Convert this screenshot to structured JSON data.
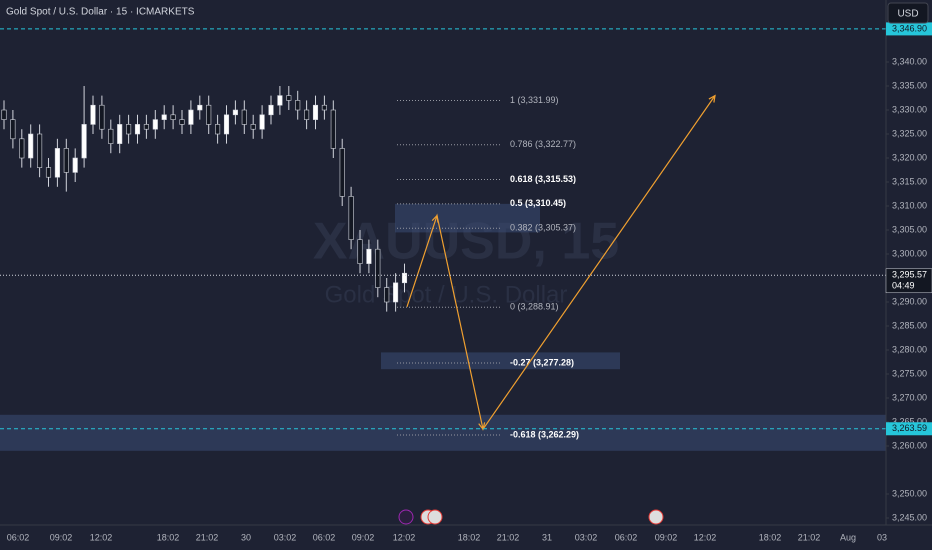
{
  "chart_data": {
    "type": "candlestick",
    "title": "Gold Spot / U.S. Dollar · 15 · ICMARKETS",
    "watermark": "XAUUSD, 15",
    "watermark_subtitle": "Gold Spot / U.S. Dollar",
    "currency_button": "USD",
    "ylim": [
      3243.54,
      3352.92
    ],
    "yticks": [
      {
        "value": 3245,
        "label": "3,245.00"
      },
      {
        "value": 3250,
        "label": "3,250.00"
      },
      {
        "value": 3260,
        "label": "3,260.00"
      },
      {
        "value": 3265,
        "label": "3,265.00"
      },
      {
        "value": 3270,
        "label": "3,270.00"
      },
      {
        "value": 3275,
        "label": "3,275.00"
      },
      {
        "value": 3280,
        "label": "3,280.00"
      },
      {
        "value": 3285,
        "label": "3,285.00"
      },
      {
        "value": 3290,
        "label": "3,290.00"
      },
      {
        "value": 3300,
        "label": "3,300.00"
      },
      {
        "value": 3305,
        "label": "3,305.00"
      },
      {
        "value": 3310,
        "label": "3,310.00"
      },
      {
        "value": 3315,
        "label": "3,315.00"
      },
      {
        "value": 3320,
        "label": "3,320.00"
      },
      {
        "value": 3325,
        "label": "3,325.00"
      },
      {
        "value": 3330,
        "label": "3,330.00"
      },
      {
        "value": 3335,
        "label": "3,335.00"
      },
      {
        "value": 3340,
        "label": "3,340.00"
      }
    ],
    "x_labels": [
      "06:02",
      "09:02",
      "12:02",
      "18:02",
      "21:02",
      "30",
      "03:02",
      "06:02",
      "09:02",
      "12:02",
      "18:02",
      "21:02",
      "31",
      "03:02",
      "06:02",
      "09:02",
      "12:02",
      "18:02",
      "21:02",
      "Aug",
      "03"
    ],
    "candles": {
      "up_color": "#ffffff",
      "down_color": "#131722",
      "open": [
        3330,
        3328,
        3324,
        3320,
        3325,
        3318,
        3316,
        3322,
        3317,
        3320,
        3327,
        3331,
        3326,
        3323,
        3327,
        3325,
        3327,
        3326,
        3328,
        3329,
        3328,
        3327,
        3330,
        3331,
        3327,
        3325,
        3329,
        3330,
        3327,
        3326,
        3329,
        3331,
        3333,
        3332,
        3330,
        3328,
        3331,
        3330,
        3322,
        3312,
        3303,
        3298,
        3301,
        3293,
        3290,
        3294
      ],
      "high": [
        3332,
        3330,
        3326,
        3327,
        3327,
        3320,
        3324,
        3324,
        3322,
        3335,
        3333,
        3333,
        3328,
        3329,
        3329,
        3329,
        3329,
        3330,
        3331,
        3331,
        3330,
        3332,
        3333,
        3333,
        3329,
        3331,
        3332,
        3332,
        3329,
        3331,
        3333,
        3335,
        3335,
        3334,
        3332,
        3333,
        3333,
        3332,
        3324,
        3314,
        3305,
        3303,
        3303,
        3295,
        3296,
        3298
      ],
      "low": [
        3326,
        3322,
        3318,
        3318,
        3316,
        3314,
        3314,
        3313,
        3315,
        3318,
        3325,
        3324,
        3321,
        3321,
        3323,
        3323,
        3324,
        3324,
        3326,
        3326,
        3325,
        3325,
        3328,
        3325,
        3323,
        3323,
        3327,
        3325,
        3324,
        3324,
        3327,
        3329,
        3330,
        3328,
        3326,
        3326,
        3328,
        3320,
        3310,
        3301,
        3296,
        3296,
        3291,
        3288,
        3288,
        3292
      ],
      "close": [
        3328,
        3324,
        3320,
        3325,
        3318,
        3316,
        3322,
        3317,
        3320,
        3327,
        3331,
        3326,
        3323,
        3327,
        3325,
        3327,
        3326,
        3328,
        3329,
        3328,
        3327,
        3330,
        3331,
        3327,
        3325,
        3329,
        3330,
        3327,
        3326,
        3329,
        3331,
        3333,
        3332,
        3330,
        3328,
        3331,
        3330,
        3322,
        3312,
        3303,
        3298,
        3301,
        3293,
        3290,
        3294,
        3296
      ]
    },
    "fib_levels": [
      {
        "value": 3331.99,
        "label": "1 (3,331.99)",
        "emphasis": false
      },
      {
        "value": 3322.77,
        "label": "0.786 (3,322.77)",
        "emphasis": false
      },
      {
        "value": 3315.53,
        "label": "0.618 (3,315.53)",
        "emphasis": true
      },
      {
        "value": 3310.45,
        "label": "0.5 (3,310.45)",
        "emphasis": true
      },
      {
        "value": 3305.37,
        "label": "0.382 (3,305.37)",
        "emphasis": false
      },
      {
        "value": 3288.91,
        "label": "0 (3,288.91)",
        "emphasis": false
      },
      {
        "value": 3277.28,
        "label": "-0.27 (3,277.28)",
        "emphasis": true
      },
      {
        "value": 3262.29,
        "label": "-0.618 (3,262.29)",
        "emphasis": true
      }
    ],
    "zones": [
      [
        3310.45,
        3304.5
      ],
      [
        3279.5,
        3276
      ],
      [
        3266.5,
        3259
      ]
    ],
    "zone_color": "#3a4d75",
    "projection": {
      "values": [
        3289,
        3308,
        3263.5,
        3333
      ],
      "color": "#f0a030"
    },
    "price_lines": [
      {
        "value": 3346.9,
        "label": "3,346.90",
        "style": "dashed",
        "color": "#26c6da"
      },
      {
        "value": 3295.57,
        "label": "3,295.57",
        "style": "dotted",
        "color": "#d1d4dc",
        "countdown": "04:49"
      },
      {
        "value": 3263.59,
        "label": "3,263.59",
        "style": "dashed",
        "color": "#26c6da"
      }
    ]
  }
}
